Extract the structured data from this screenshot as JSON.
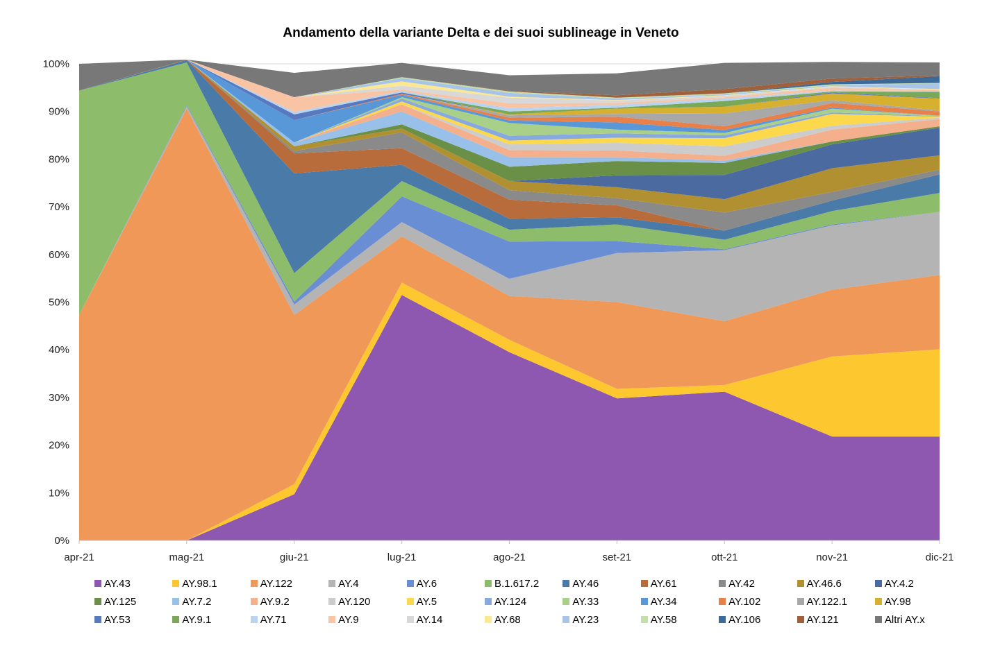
{
  "chart_data": {
    "type": "area",
    "stacked": true,
    "title": "Andamento della variante Delta e dei suoi sublineage in Veneto",
    "xlabel": "",
    "ylabel": "",
    "ylim": [
      0,
      100
    ],
    "y_tick_labels": [
      "0%",
      "10%",
      "20%",
      "30%",
      "40%",
      "50%",
      "60%",
      "70%",
      "80%",
      "90%",
      "100%"
    ],
    "categories": [
      "apr-21",
      "mag-21",
      "giu-21",
      "lug-21",
      "ago-21",
      "set-21",
      "ott-21",
      "nov-21",
      "dic-21"
    ],
    "grid": true,
    "legend_position": "bottom",
    "series": [
      {
        "name": "AY.43",
        "color": "#8e58b0",
        "values": [
          0,
          0,
          9.7,
          51.5,
          39.5,
          29.8,
          31.2,
          21.8,
          21.8
        ]
      },
      {
        "name": "AY.98.1",
        "color": "#fdc82f",
        "values": [
          0,
          0,
          2.1,
          2.6,
          2.6,
          2.0,
          1.4,
          16.8,
          18.3
        ]
      },
      {
        "name": "AY.122",
        "color": "#f09858",
        "values": [
          47.3,
          90.6,
          35.5,
          9.7,
          9.2,
          18.2,
          13.4,
          14.0,
          15.6
        ]
      },
      {
        "name": "AY.4",
        "color": "#b4b4b4",
        "values": [
          0,
          0.5,
          2.2,
          3.0,
          3.6,
          10.3,
          14.9,
          13.5,
          13.2
        ]
      },
      {
        "name": "AY.6",
        "color": "#6a8ed4",
        "values": [
          0,
          0.2,
          0.6,
          5.4,
          7.8,
          2.5,
          0.2,
          0.2,
          0
        ]
      },
      {
        "name": "B.1.617.2",
        "color": "#8dbc6a",
        "values": [
          47.1,
          9.0,
          6.0,
          3.2,
          2.5,
          3.5,
          2.0,
          2.8,
          4.0
        ]
      },
      {
        "name": "AY.46",
        "color": "#4a7aa8",
        "values": [
          0,
          0.5,
          20.9,
          3.4,
          2.3,
          1.5,
          1.9,
          2.2,
          3.9
        ]
      },
      {
        "name": "AY.61",
        "color": "#b86c3c",
        "values": [
          0,
          0.1,
          4.2,
          3.5,
          4.0,
          2.5,
          0,
          0,
          0
        ]
      },
      {
        "name": "AY.42",
        "color": "#8a8a8a",
        "values": [
          0,
          0,
          0.5,
          3.3,
          2.0,
          1.5,
          3.8,
          1.8,
          1.0
        ]
      },
      {
        "name": "AY.46.6",
        "color": "#b09030",
        "values": [
          0,
          0,
          1.0,
          0.8,
          1.9,
          2.3,
          2.8,
          5.0,
          3.0
        ]
      },
      {
        "name": "AY.4.2",
        "color": "#4a6aa0",
        "values": [
          0,
          0,
          0,
          0,
          0,
          2.5,
          5.1,
          5.0,
          5.8
        ]
      },
      {
        "name": "AY.125",
        "color": "#6a9048",
        "values": [
          0,
          0,
          0,
          0.9,
          3.0,
          3.0,
          2.5,
          0.6,
          0.3
        ]
      },
      {
        "name": "AY.7.2",
        "color": "#98c0e8",
        "values": [
          0,
          0,
          0.8,
          2.7,
          2.0,
          0.8,
          0.5,
          0,
          0
        ]
      },
      {
        "name": "AY.9.2",
        "color": "#f4b08c",
        "values": [
          0,
          0,
          0,
          1.5,
          1.5,
          1.4,
          1.0,
          2.5,
          1.5
        ]
      },
      {
        "name": "AY.120",
        "color": "#cccccc",
        "values": [
          0,
          0,
          0,
          0,
          1.2,
          1.6,
          2.0,
          0.8,
          0.3
        ]
      },
      {
        "name": "AY.5",
        "color": "#fcd84c",
        "values": [
          0,
          0,
          0,
          0.6,
          0.8,
          1.1,
          1.7,
          2.5,
          0.2
        ]
      },
      {
        "name": "AY.124",
        "color": "#88a8e0",
        "values": [
          0,
          0,
          0,
          0.6,
          1.0,
          0.9,
          0.6,
          0.3,
          0.1
        ]
      },
      {
        "name": "AY.33",
        "color": "#a8d088",
        "values": [
          0,
          0,
          0,
          0.3,
          2.7,
          0.8,
          0.5,
          0.8,
          0.1
        ]
      },
      {
        "name": "AY.34",
        "color": "#5898d8",
        "values": [
          0,
          0,
          4.7,
          0.5,
          0.5,
          1.5,
          0.6,
          0.2,
          0
        ]
      },
      {
        "name": "AY.102",
        "color": "#e8804a",
        "values": [
          0,
          0,
          0,
          0.2,
          0.6,
          1.2,
          0.8,
          1.0,
          0.9
        ]
      },
      {
        "name": "AY.122.1",
        "color": "#a8a8a8",
        "values": [
          0,
          0,
          0,
          0,
          0.5,
          0.6,
          2.7,
          0.6,
          0.2
        ]
      },
      {
        "name": "AY.98",
        "color": "#d8b030",
        "values": [
          0,
          0,
          0,
          0,
          0.2,
          1.1,
          1.4,
          1.4,
          2.5
        ]
      },
      {
        "name": "AY.53",
        "color": "#5878c0",
        "values": [
          0,
          0,
          1.2,
          0.3,
          0,
          0,
          0,
          0.2,
          0.1
        ]
      },
      {
        "name": "AY.9.1",
        "color": "#78a858",
        "values": [
          0,
          0,
          0,
          0,
          0.6,
          0.2,
          1.2,
          0.2,
          1.3
        ]
      },
      {
        "name": "AY.71",
        "color": "#b8d4f0",
        "values": [
          0,
          0,
          0.5,
          0.3,
          0.7,
          0.6,
          0.5,
          0.2,
          0.2
        ]
      },
      {
        "name": "AY.9",
        "color": "#f8c4a4",
        "values": [
          0,
          0,
          3.1,
          0.3,
          1.0,
          0.4,
          0.3,
          0.6,
          0.2
        ]
      },
      {
        "name": "AY.14",
        "color": "#d8d8d8",
        "values": [
          0,
          0,
          0,
          0.8,
          1.2,
          0.5,
          0.3,
          0.2,
          0.1
        ]
      },
      {
        "name": "AY.68",
        "color": "#fce890",
        "values": [
          0,
          0,
          0,
          0.9,
          0.2,
          0.1,
          0.1,
          0.1,
          0.1
        ]
      },
      {
        "name": "AY.23",
        "color": "#a8c4e8",
        "values": [
          0,
          0,
          0,
          0.7,
          0.8,
          0.3,
          0.2,
          0.2,
          1.2
        ]
      },
      {
        "name": "AY.58",
        "color": "#c4e0a8",
        "values": [
          0,
          0,
          0,
          0.2,
          0.3,
          0.2,
          0.2,
          0.2,
          0.1
        ]
      },
      {
        "name": "AY.106",
        "color": "#3c6a98",
        "values": [
          0,
          0,
          0,
          0,
          0,
          0,
          0,
          0.5,
          1.4
        ]
      },
      {
        "name": "AY.121",
        "color": "#a0603c",
        "values": [
          0,
          0,
          0,
          0,
          0.1,
          0.5,
          0.9,
          0.7,
          0.2
        ]
      },
      {
        "name": "Altri AY.x",
        "color": "#787878",
        "values": [
          5.6,
          0,
          5.1,
          3.0,
          3.3,
          4.6,
          5.5,
          3.5,
          2.7
        ]
      }
    ]
  }
}
